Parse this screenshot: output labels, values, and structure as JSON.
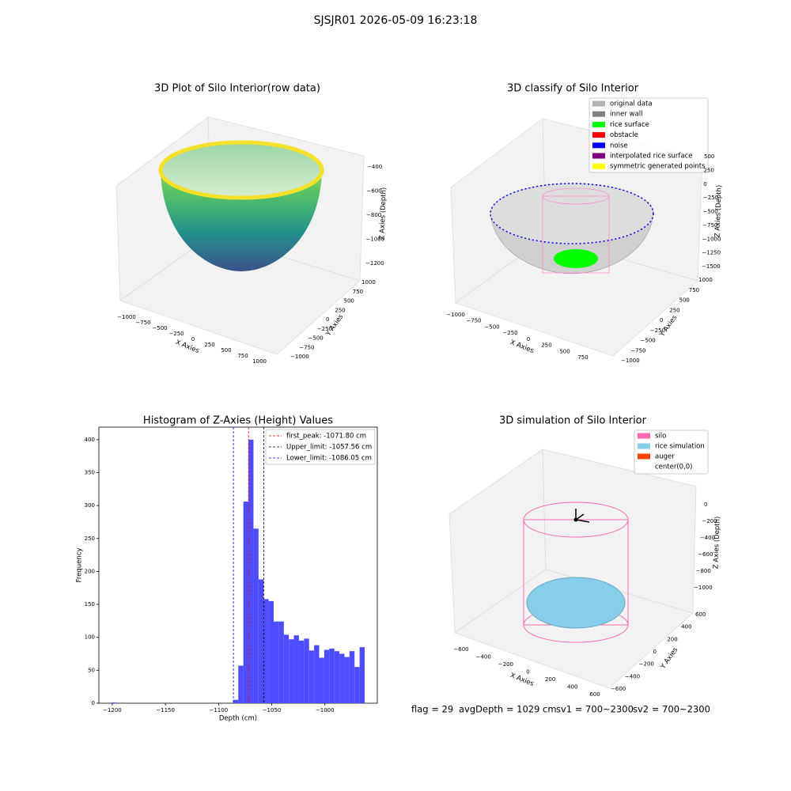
{
  "suptitle": "SJSJR01 2026-05-09 16:23:18",
  "chart_data": [
    {
      "type": "surface3d",
      "title": "3D Plot of Silo Interior(row data)",
      "xlabel": "X Axies",
      "ylabel": "Y Axies",
      "zlabel": "Z Axies (Depth)",
      "xticks": [
        {
          "value": -1000,
          "label": "−1000"
        },
        {
          "value": -750,
          "label": "−750"
        },
        {
          "value": -500,
          "label": "−500"
        },
        {
          "value": -250,
          "label": "−250"
        },
        0,
        250,
        500,
        750,
        1000
      ],
      "yticks": [
        {
          "value": -1000,
          "label": "−1000"
        },
        {
          "value": -750,
          "label": "−750"
        },
        {
          "value": -500,
          "label": "−500"
        },
        {
          "value": -250,
          "label": "−250"
        },
        0,
        250,
        500,
        750,
        1000
      ],
      "zticks": [
        {
          "value": -400,
          "label": "−400"
        },
        {
          "value": -600,
          "label": "−600"
        },
        {
          "value": -800,
          "label": "−800"
        },
        {
          "value": -1000,
          "label": "−1000"
        },
        {
          "value": -1200,
          "label": "−1200"
        }
      ]
    },
    {
      "type": "scatter3d",
      "title": "3D classify of Silo Interior",
      "xlabel": "X Axies",
      "ylabel": "Y Axies",
      "zlabel": "Z Axies (Depth)",
      "xticks": [
        {
          "value": -1000,
          "label": "−1000"
        },
        {
          "value": -750,
          "label": "−750"
        },
        {
          "value": -500,
          "label": "−500"
        },
        {
          "value": -250,
          "label": "−250"
        },
        0,
        250,
        500,
        750
      ],
      "yticks": [
        {
          "value": -1000,
          "label": "−1000"
        },
        {
          "value": -750,
          "label": "−750"
        },
        {
          "value": -500,
          "label": "−500"
        },
        {
          "value": -250,
          "label": "−250"
        },
        0,
        250,
        500,
        750,
        1000
      ],
      "zticks": [
        500,
        250,
        0,
        {
          "value": -250,
          "label": "−250"
        },
        {
          "value": -500,
          "label": "−500"
        },
        {
          "value": -750,
          "label": "−750"
        },
        {
          "value": -1000,
          "label": "−1000"
        },
        {
          "value": -1250,
          "label": "−1250"
        },
        {
          "value": -1500,
          "label": "−1500"
        }
      ],
      "legend": [
        {
          "name": "original data",
          "color": "#b3b3b3"
        },
        {
          "name": "inner wall",
          "color": "#808080"
        },
        {
          "name": "rice surface",
          "color": "#00ff00"
        },
        {
          "name": "obstacle",
          "color": "#ff0000"
        },
        {
          "name": "noise",
          "color": "#0000ff"
        },
        {
          "name": "interpolated rice surface",
          "color": "#800080"
        },
        {
          "name": "symmetric generated points",
          "color": "#ffff00"
        }
      ]
    },
    {
      "type": "histogram",
      "title": "Histogram of Z-Axies (Height) Values",
      "xlabel": "Depth (cm)",
      "ylabel": "Frequency",
      "color": "#4d4dff",
      "bins": [
        -1200.3,
        -1195.55,
        -1190.79,
        -1186.04,
        -1181.28,
        -1176.53,
        -1171.78,
        -1167.02,
        -1162.27,
        -1157.51,
        -1152.76,
        -1148.01,
        -1143.25,
        -1138.5,
        -1133.74,
        -1128.99,
        -1124.24,
        -1119.48,
        -1114.73,
        -1109.97,
        -1105.22,
        -1100.47,
        -1095.71,
        -1090.96,
        -1086.2,
        -1081.45,
        -1076.7,
        -1071.94,
        -1067.19,
        -1062.43,
        -1057.68,
        -1052.93,
        -1048.17,
        -1043.42,
        -1038.66,
        -1033.91,
        -1029.16,
        -1024.4,
        -1019.65,
        -1014.89,
        -1010.14,
        -1005.39,
        -1000.63,
        -995.88,
        -991.12,
        -986.37,
        -981.62,
        -976.86,
        -972.11,
        -967.35,
        -962.6
      ],
      "values": [
        1,
        0,
        0,
        0,
        0,
        0,
        0,
        0,
        0,
        0,
        0,
        0,
        0,
        0,
        0,
        0,
        0,
        0,
        0,
        0,
        0,
        0,
        0,
        0,
        5,
        57,
        306,
        400,
        265,
        188,
        158,
        155,
        124,
        124,
        104,
        97,
        103,
        95,
        98,
        80,
        88,
        69,
        81,
        83,
        79,
        75,
        70,
        79,
        55,
        85
      ],
      "xlim": [
        -1212.6,
        -950.7
      ],
      "ylim": [
        0,
        419
      ],
      "xticks": [
        {
          "value": -1200,
          "label": "−1200"
        },
        {
          "value": -1150,
          "label": "−1150"
        },
        {
          "value": -1100,
          "label": "−1100"
        },
        {
          "value": -1050,
          "label": "−1050"
        },
        {
          "value": -1000,
          "label": "−1000"
        }
      ],
      "yticks": [
        0,
        50,
        100,
        150,
        200,
        250,
        300,
        350,
        400
      ],
      "vlines": [
        {
          "value": -1071.8,
          "label": "first_peak: -1071.80 cm",
          "color": "#ff0000"
        },
        {
          "value": -1057.56,
          "label": "Upper_limit: -1057.56 cm",
          "color": "#000000"
        },
        {
          "value": -1086.05,
          "label": "Lower_limit: -1086.05 cm",
          "color": "#0000ff"
        }
      ]
    },
    {
      "type": "simulation3d",
      "title": "3D simulation of Silo Interior",
      "xlabel": "X Axies",
      "ylabel": "Y Axies",
      "zlabel": "Z Axies (Depth)",
      "xticks": [
        {
          "value": -600,
          "label": "−600"
        },
        {
          "value": -400,
          "label": "−400"
        },
        {
          "value": -200,
          "label": "−200"
        },
        0,
        200,
        400,
        600
      ],
      "yticks": [
        {
          "value": -600,
          "label": "−600"
        },
        {
          "value": -400,
          "label": "−400"
        },
        {
          "value": -200,
          "label": "−200"
        },
        0,
        200,
        400,
        600
      ],
      "zticks": [
        0,
        {
          "value": -200,
          "label": "−200"
        },
        {
          "value": -400,
          "label": "−400"
        },
        {
          "value": -600,
          "label": "−600"
        },
        {
          "value": -800,
          "label": "−800"
        },
        {
          "value": -1000,
          "label": "−1000"
        }
      ],
      "legend": [
        {
          "name": "silo",
          "color": "#ff69b4"
        },
        {
          "name": "rice simulation",
          "color": "#87ceeb"
        },
        {
          "name": "auger",
          "color": "#ff4500"
        },
        {
          "name": "center(0,0)"
        }
      ]
    }
  ],
  "footer": [
    "flag = 29",
    "avgDepth = 1029 cm",
    "sv1 = 700~2300",
    "sv2 = 700~2300"
  ]
}
